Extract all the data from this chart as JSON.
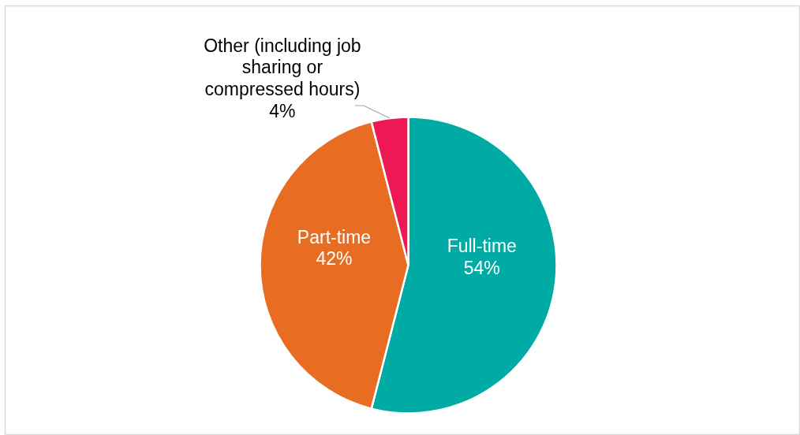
{
  "chart_data": {
    "type": "pie",
    "categories": [
      "Full-time",
      "Part-time",
      "Other (including job sharing or compressed hours)"
    ],
    "values": [
      54,
      42,
      4
    ],
    "colors": [
      "#00aaa5",
      "#e86c22",
      "#ee1854"
    ],
    "value_labels": [
      "54%",
      "42%",
      "4%"
    ]
  }
}
